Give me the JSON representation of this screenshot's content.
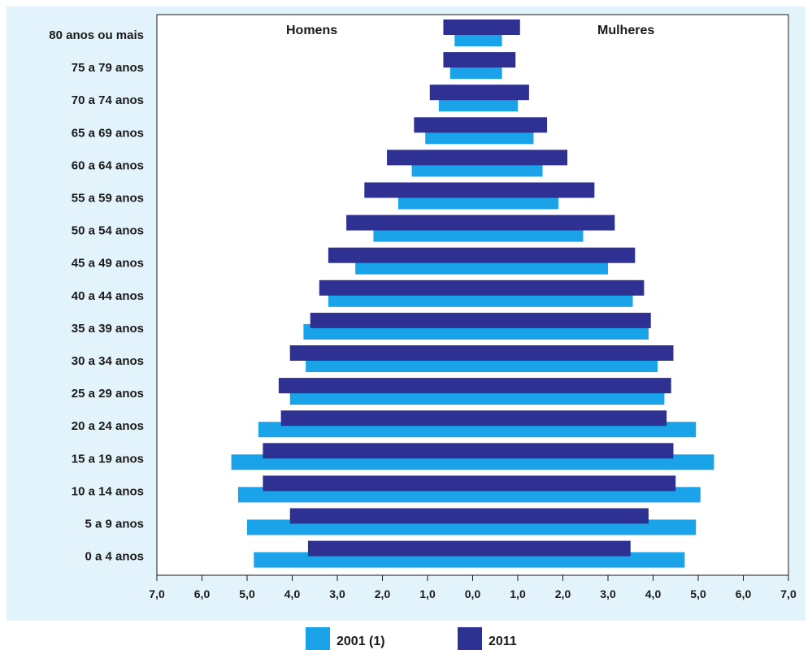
{
  "chart_data": {
    "type": "bar",
    "orientation": "horizontal",
    "layout": "population-pyramid",
    "side_labels": {
      "left": "Homens",
      "right": "Mulheres"
    },
    "categories": [
      "0 a 4 anos",
      "5 a 9 anos",
      "10 a 14 anos",
      "15 a 19 anos",
      "20 a 24 anos",
      "25 a 29 anos",
      "30 a 34 anos",
      "35 a 39 anos",
      "40 a 44 anos",
      "45 a 49 anos",
      "50 a 54 anos",
      "55 a 59 anos",
      "60 a 64 anos",
      "65 a 69 anos",
      "70 a 74 anos",
      "75 a 79 anos",
      "80 anos ou mais"
    ],
    "xlim": [
      -7,
      7
    ],
    "x_ticks": [
      -7,
      -6,
      -5,
      -4,
      -3,
      -2,
      -1,
      0,
      1,
      2,
      3,
      4,
      5,
      6,
      7
    ],
    "x_tick_labels": [
      "7,0",
      "6,0",
      "5,0",
      "4,0",
      "3,0",
      "2,0",
      "1,0",
      "0,0",
      "1,0",
      "2,0",
      "3,0",
      "4,0",
      "5,0",
      "6,0",
      "7,0"
    ],
    "grid": false,
    "legend_position": "bottom-center",
    "series": [
      {
        "name": "2001 (1)",
        "color": "#1aa3e8",
        "men": [
          4.85,
          5.0,
          5.2,
          5.35,
          4.75,
          4.05,
          3.7,
          3.75,
          3.2,
          2.6,
          2.2,
          1.65,
          1.35,
          1.05,
          0.75,
          0.5,
          0.4
        ],
        "women": [
          4.7,
          4.95,
          5.05,
          5.35,
          4.95,
          4.25,
          4.1,
          3.9,
          3.55,
          3.0,
          2.45,
          1.9,
          1.55,
          1.35,
          1.0,
          0.65,
          0.65
        ]
      },
      {
        "name": "2011",
        "color": "#2e3192",
        "men": [
          3.65,
          4.05,
          4.65,
          4.65,
          4.25,
          4.3,
          4.05,
          3.6,
          3.4,
          3.2,
          2.8,
          2.4,
          1.9,
          1.3,
          0.95,
          0.65,
          0.65
        ],
        "women": [
          3.5,
          3.9,
          4.5,
          4.45,
          4.3,
          4.4,
          4.45,
          3.95,
          3.8,
          3.6,
          3.15,
          2.7,
          2.1,
          1.65,
          1.25,
          0.95,
          1.05
        ]
      }
    ]
  }
}
